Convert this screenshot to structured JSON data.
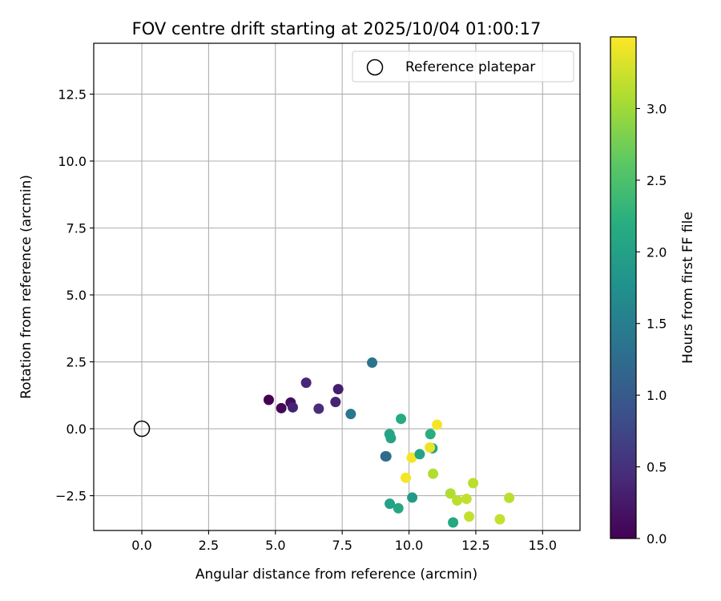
{
  "chart_data": {
    "type": "scatter",
    "title": "FOV centre drift starting at 2025/10/04 01:00:17",
    "xlabel": "Angular distance from reference (arcmin)",
    "ylabel": "Rotation from reference (arcmin)",
    "xlim": [
      -1.8,
      16.4
    ],
    "ylim": [
      -3.8,
      14.4
    ],
    "xticks": [
      0.0,
      2.5,
      5.0,
      7.5,
      10.0,
      12.5,
      15.0
    ],
    "yticks": [
      -2.5,
      0.0,
      2.5,
      5.0,
      7.5,
      10.0,
      12.5
    ],
    "tick_format": 1,
    "grid": true,
    "legend": {
      "position": "top-right",
      "entries": [
        {
          "label": "Reference platepar",
          "marker": "open-circle"
        }
      ]
    },
    "reference_point": {
      "x": 0.0,
      "y": 0.0
    },
    "colorbar": {
      "label": "Hours from first FF file",
      "colormap": "viridis",
      "range": [
        0.0,
        3.5
      ],
      "ticks": [
        0.0,
        0.5,
        1.0,
        1.5,
        2.0,
        2.5,
        3.0
      ]
    },
    "points": [
      {
        "x": 4.75,
        "y": 1.08,
        "hours": 0.0
      },
      {
        "x": 5.22,
        "y": 0.77,
        "hours": 0.05
      },
      {
        "x": 5.57,
        "y": 0.98,
        "hours": 0.1
      },
      {
        "x": 5.65,
        "y": 0.8,
        "hours": 0.35
      },
      {
        "x": 6.15,
        "y": 1.72,
        "hours": 0.4
      },
      {
        "x": 6.62,
        "y": 0.75,
        "hours": 0.45
      },
      {
        "x": 7.25,
        "y": 1.0,
        "hours": 0.35
      },
      {
        "x": 7.35,
        "y": 1.48,
        "hours": 0.3
      },
      {
        "x": 7.82,
        "y": 0.55,
        "hours": 1.4
      },
      {
        "x": 8.62,
        "y": 2.47,
        "hours": 1.35
      },
      {
        "x": 9.12,
        "y": -1.03,
        "hours": 1.0
      },
      {
        "x": 9.15,
        "y": -1.03,
        "hours": 1.25
      },
      {
        "x": 9.27,
        "y": -0.2,
        "hours": 2.05
      },
      {
        "x": 9.32,
        "y": -0.35,
        "hours": 2.05
      },
      {
        "x": 9.28,
        "y": -2.8,
        "hours": 2.0
      },
      {
        "x": 9.6,
        "y": -2.97,
        "hours": 2.1
      },
      {
        "x": 9.7,
        "y": 0.37,
        "hours": 2.15
      },
      {
        "x": 9.88,
        "y": -1.83,
        "hours": 3.45
      },
      {
        "x": 10.1,
        "y": -1.08,
        "hours": 3.45
      },
      {
        "x": 10.12,
        "y": -2.57,
        "hours": 1.9
      },
      {
        "x": 10.4,
        "y": -0.95,
        "hours": 2.05
      },
      {
        "x": 10.8,
        "y": -0.2,
        "hours": 2.2
      },
      {
        "x": 10.88,
        "y": -0.73,
        "hours": 2.05
      },
      {
        "x": 10.78,
        "y": -0.7,
        "hours": 3.4
      },
      {
        "x": 10.9,
        "y": -1.68,
        "hours": 3.1
      },
      {
        "x": 11.05,
        "y": 0.15,
        "hours": 3.45
      },
      {
        "x": 11.55,
        "y": -2.42,
        "hours": 3.1
      },
      {
        "x": 11.65,
        "y": -3.5,
        "hours": 2.1
      },
      {
        "x": 11.8,
        "y": -2.68,
        "hours": 3.15
      },
      {
        "x": 12.15,
        "y": -2.62,
        "hours": 3.2
      },
      {
        "x": 12.25,
        "y": -3.28,
        "hours": 3.2
      },
      {
        "x": 12.4,
        "y": -2.03,
        "hours": 3.15
      },
      {
        "x": 13.4,
        "y": -3.38,
        "hours": 3.2
      },
      {
        "x": 13.75,
        "y": -2.58,
        "hours": 3.15
      }
    ]
  }
}
